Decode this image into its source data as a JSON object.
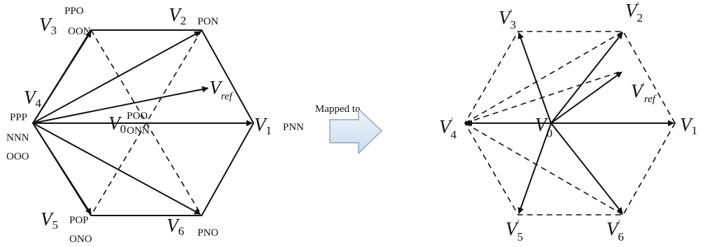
{
  "left": {
    "codes": {
      "v1": "PNN",
      "v2": "PON",
      "v3a": "PPO",
      "v3b": "OON",
      "v4a": "PPP",
      "v4b": "NNN",
      "v4c": "OOO",
      "v5a": "POP",
      "v5b": "ONO",
      "v6": "PNO",
      "v0a": "POO",
      "v0b": "ONN"
    },
    "labels": {
      "v": "V",
      "s0": "0",
      "s1": "1",
      "s2": "2",
      "s3": "3",
      "s4": "4",
      "s5": "5",
      "s6": "6",
      "ref": "ref"
    }
  },
  "arrow": {
    "caption": "Mapped to"
  },
  "right": {
    "labels": {
      "v": "V",
      "prime": "'",
      "s0": "0",
      "s1": "1",
      "s2": "2",
      "s3": "3",
      "s4": "4",
      "s5": "5",
      "s6": "6",
      "ref": "ref"
    }
  }
}
